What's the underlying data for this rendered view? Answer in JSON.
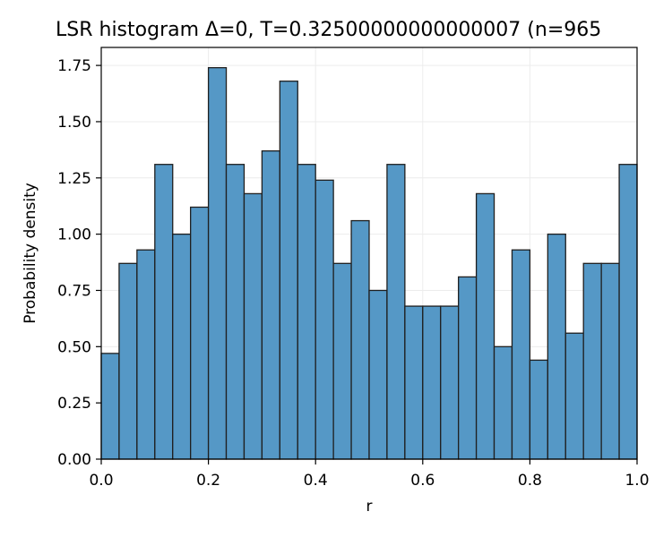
{
  "chart_data": {
    "type": "bar",
    "title": "LSR histogram Δ=0, T=0.32500000000000007 (n=965",
    "xlabel": "r",
    "ylabel": "Probability density",
    "xlim": [
      0.0,
      1.0
    ],
    "ylim": [
      0.0,
      1.83
    ],
    "grid": true,
    "bar_color": "#5598c6",
    "edge_color": "#1f1f1f",
    "bin_width": 0.0333,
    "bin_edges_start": 0.0,
    "values": [
      0.47,
      0.87,
      0.93,
      1.31,
      1.0,
      1.12,
      1.74,
      1.31,
      1.18,
      1.37,
      1.68,
      1.31,
      1.24,
      0.87,
      1.06,
      0.75,
      1.31,
      0.68,
      0.68,
      0.68,
      0.81,
      1.18,
      0.5,
      0.93,
      0.44,
      1.0,
      0.56,
      0.87,
      0.87,
      1.31
    ],
    "x_ticks": [
      0.0,
      0.2,
      0.4,
      0.6,
      0.8,
      1.0
    ],
    "x_tick_labels": [
      "0.0",
      "0.2",
      "0.4",
      "0.6",
      "0.8",
      "1.0"
    ],
    "y_ticks": [
      0.0,
      0.25,
      0.5,
      0.75,
      1.0,
      1.25,
      1.5,
      1.75
    ],
    "y_tick_labels": [
      "0.00",
      "0.25",
      "0.50",
      "0.75",
      "1.00",
      "1.25",
      "1.50",
      "1.75"
    ]
  }
}
